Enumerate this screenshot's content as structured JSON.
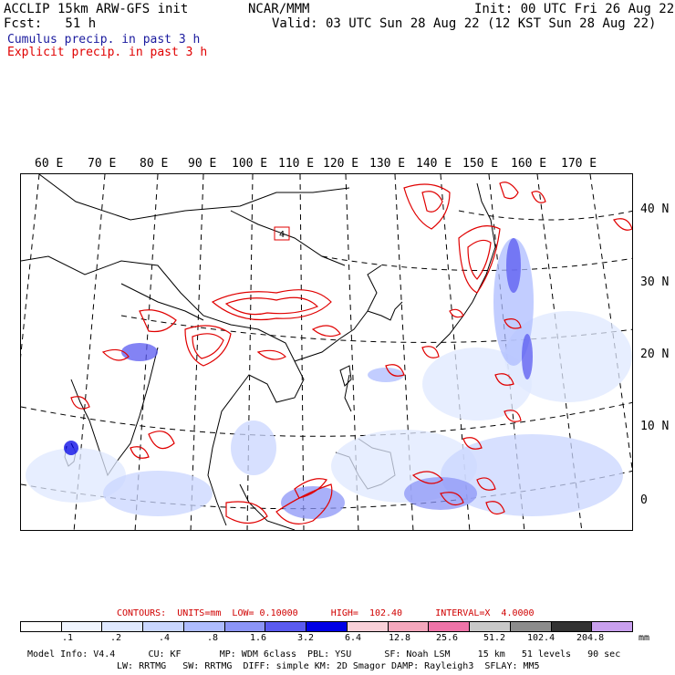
{
  "header": {
    "line1_left": "ACCLIP 15km ARW-GFS init",
    "line1_center": "NCAR/MMM",
    "line1_right": "Init: 00 UTC Fri 26 Aug 22",
    "line2_left": "Fcst:   51 h",
    "line2_right": "Valid: 03 UTC Sun 28 Aug 22 (12 KST Sun 28 Aug 22)",
    "legend_cumulus": "Cumulus precip. in past 3 h",
    "legend_explicit": "Explicit precip. in past 3 h",
    "color_cumulus": "#1a1a9e",
    "color_explicit": "#e00000"
  },
  "map": {
    "lon_labels": [
      "60 E",
      "70 E",
      "80 E",
      "90 E",
      "100 E",
      "110 E",
      "120 E",
      "130 E",
      "140 E",
      "150 E",
      "160 E",
      "170 E"
    ],
    "lat_labels": [
      "40 N",
      "30 N",
      "20 N",
      "10 N",
      "0"
    ],
    "box_label": "4"
  },
  "contours": {
    "text": "CONTOURS:  UNITS=mm  LOW= 0.10000      HIGH=  102.40      INTERVAL=X  4.0000"
  },
  "colorbar": {
    "colors": [
      "#ffffff",
      "#f0f5ff",
      "#dfe8ff",
      "#c9d6ff",
      "#aebcff",
      "#8c95f7",
      "#5a5af0",
      "#0000e6",
      "#f9d0d8",
      "#f4a7bc",
      "#ee74a8",
      "#c8c8c8",
      "#8c8c8c",
      "#333333",
      "#c9a0ee"
    ],
    "ticks": [
      ".1",
      ".2",
      ".4",
      ".8",
      "1.6",
      "3.2",
      "6.4",
      "12.8",
      "25.6",
      "51.2",
      "102.4",
      "204.8"
    ],
    "units": "mm"
  },
  "footer": {
    "line1": "Model Info: V4.4      CU: KF       MP: WDM 6class  PBL: YSU      SF: Noah LSM     15 km   51 levels   90 sec",
    "line2": "LW: RRTMG   SW: RRTMG  DIFF: simple KM: 2D Smagor DAMP: Rayleigh3  SFLAY: MM5"
  }
}
